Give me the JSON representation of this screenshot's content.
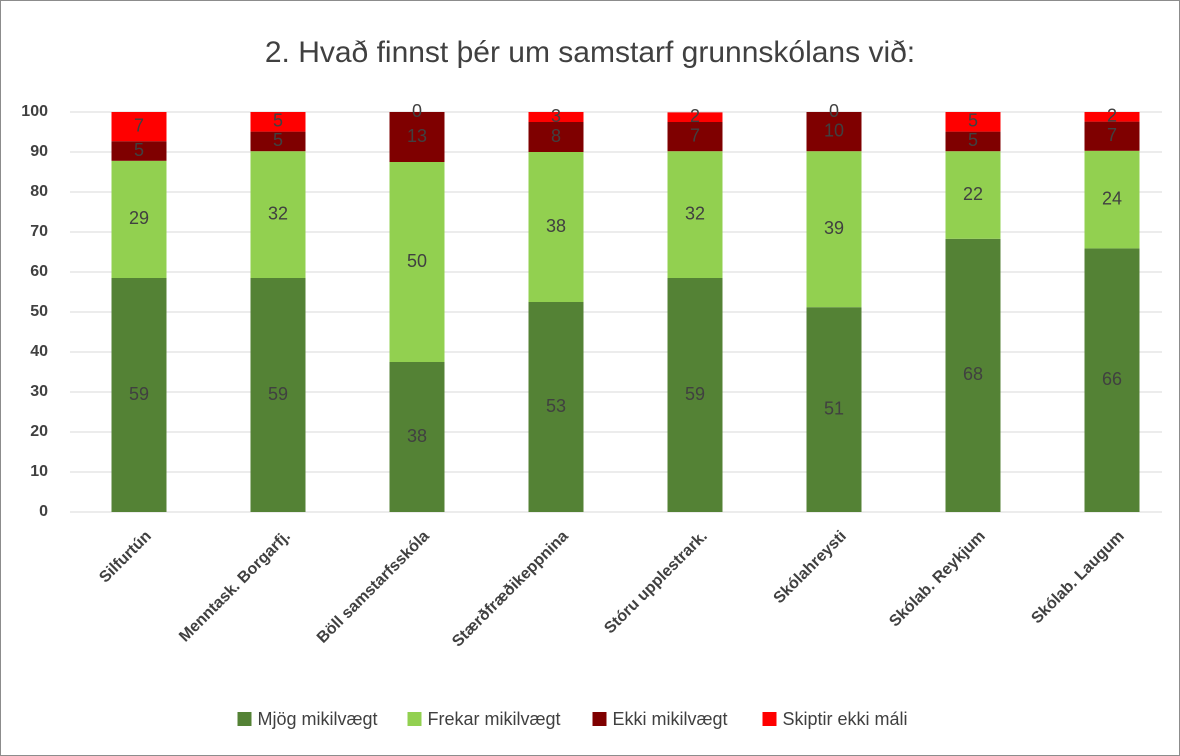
{
  "chart_data": {
    "type": "stacked_bar",
    "title": "2. Hvað finnst þér um samstarf grunnskólans við:",
    "categories": [
      "Silfurtún",
      "Menntask. Borgarfj.",
      "Böll samstarfsskóla",
      "Stærðfræðikeppnina",
      "Stóru upplestrark.",
      "Skólahreysti",
      "Skólab. Reykjum",
      "Skólab. Laugum"
    ],
    "series": [
      {
        "name": "Mjög mikilvægt",
        "color": "#548235",
        "values": [
          58.5,
          58.5,
          37.5,
          52.5,
          58.5,
          51.2,
          68.3,
          65.9
        ],
        "value_labels": [
          "59",
          "59",
          "38",
          "53",
          "59",
          "51",
          "68",
          "66"
        ]
      },
      {
        "name": "Frekar mikilvægt",
        "color": "#92d050",
        "values": [
          29.3,
          31.7,
          50,
          37.5,
          31.7,
          39,
          21.9,
          24.4
        ],
        "value_labels": [
          "29",
          "32",
          "50",
          "38",
          "32",
          "39",
          "22",
          "24"
        ]
      },
      {
        "name": "Ekki mikilvægt",
        "color": "#7f0000",
        "values": [
          4.9,
          4.9,
          12.5,
          7.5,
          7.3,
          9.8,
          4.9,
          7.3
        ],
        "value_labels": [
          "5",
          "5",
          "13",
          "8",
          "7",
          "10",
          "5",
          "7"
        ]
      },
      {
        "name": "Skiptir ekki máli",
        "color": "#ff0000",
        "values": [
          7.3,
          4.9,
          0,
          2.5,
          2.4,
          0,
          4.9,
          2.4
        ],
        "value_labels": [
          "7",
          "5",
          "0",
          "3",
          "2",
          "0",
          "5",
          "2"
        ]
      }
    ],
    "ylim": [
      0,
      100
    ],
    "yticks": [
      0,
      10,
      20,
      30,
      40,
      50,
      60,
      70,
      80,
      90,
      100
    ],
    "grid": true,
    "legend": "bottom"
  }
}
